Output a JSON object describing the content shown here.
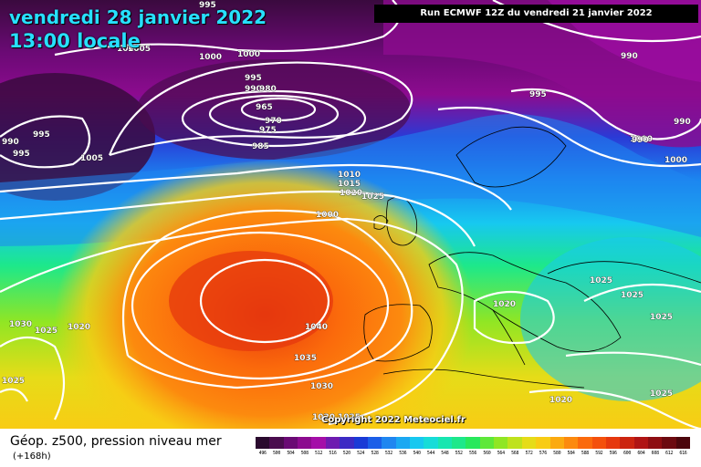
{
  "header": {
    "date_line": "vendredi 28 janvier 2022",
    "time_line": "13:00 locale",
    "run_info": "Run ECMWF 12Z du vendredi 21 janvier 2022"
  },
  "copyright": "Copyright 2022 Meteociel.fr",
  "footer": {
    "title": "Géop. z500, pression niveau mer",
    "forecast_hour": "(+168h)"
  },
  "pressure_labels": [
    "995",
    "1000",
    "1005",
    "1000",
    "1000",
    "995",
    "990",
    "980",
    "965",
    "970",
    "975",
    "985",
    "990",
    "995",
    "995",
    "990",
    "1000",
    "1005",
    "1010",
    "1015",
    "1020",
    "1025",
    "1000",
    "995",
    "990",
    "990",
    "1000",
    "1030",
    "1025",
    "1020",
    "1040",
    "1035",
    "1030",
    "1025",
    "1020",
    "1025",
    "1025",
    "1025",
    "1020",
    "1025",
    "1020",
    "1025"
  ],
  "scale": {
    "labels": [
      "496",
      "500",
      "504",
      "508",
      "512",
      "516",
      "520",
      "524",
      "528",
      "532",
      "536",
      "540",
      "544",
      "548",
      "552",
      "556",
      "560",
      "564",
      "568",
      "572",
      "576",
      "580",
      "584",
      "588",
      "592",
      "596",
      "600",
      "604",
      "608",
      "612",
      "616"
    ],
    "colors": [
      "#2a0a2e",
      "#4a0c4e",
      "#6a0a74",
      "#8c0b8f",
      "#a40ea8",
      "#6e1bb0",
      "#3c2ac4",
      "#1a3ad6",
      "#1b5ee8",
      "#1f86f0",
      "#1ba8f2",
      "#17c8f0",
      "#16dcd8",
      "#17e6b0",
      "#1de88a",
      "#28e85c",
      "#5ee83a",
      "#90e624",
      "#bfe21c",
      "#e6dc18",
      "#f8cc14",
      "#fbaa10",
      "#fc8a0e",
      "#fb6a0c",
      "#f4500c",
      "#e6380e",
      "#cc2410",
      "#b01414",
      "#8e0e12",
      "#6c0a10",
      "#4c060c"
    ]
  }
}
